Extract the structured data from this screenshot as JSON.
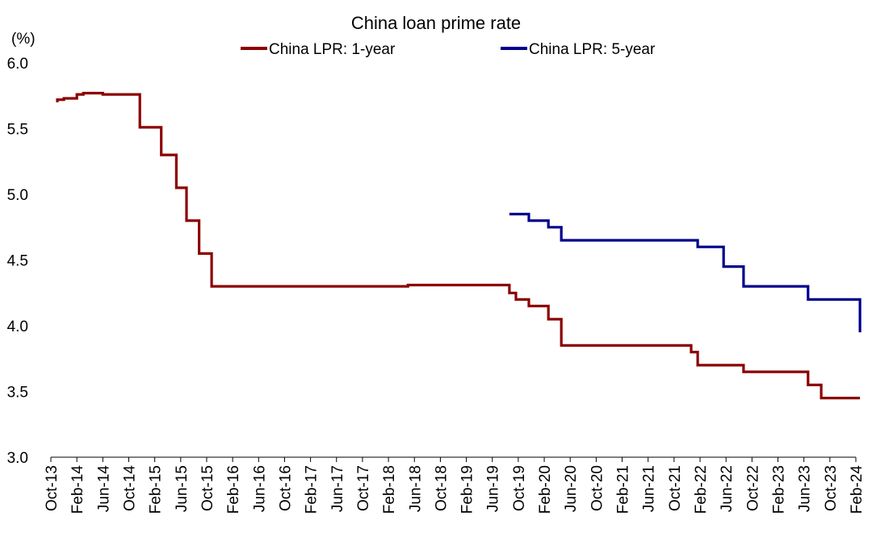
{
  "chart_data": {
    "type": "line",
    "title": "China loan prime rate",
    "ylabel": "(%)",
    "xlabel": "",
    "ylim": [
      3.0,
      6.0
    ],
    "yticks": [
      "3.0",
      "3.5",
      "4.0",
      "4.5",
      "5.0",
      "5.5",
      "6.0"
    ],
    "xlim": [
      "2013-10",
      "2024-02"
    ],
    "xticks": [
      "Oct-13",
      "Feb-14",
      "Jun-14",
      "Oct-14",
      "Feb-15",
      "Jun-15",
      "Oct-15",
      "Feb-16",
      "Jun-16",
      "Oct-16",
      "Feb-17",
      "Jun-17",
      "Oct-17",
      "Feb-18",
      "Jun-18",
      "Oct-18",
      "Feb-19",
      "Jun-19",
      "Oct-19",
      "Feb-20",
      "Jun-20",
      "Oct-20",
      "Feb-21",
      "Jun-21",
      "Oct-21",
      "Feb-22",
      "Jun-22",
      "Oct-22",
      "Feb-23",
      "Jun-23",
      "Oct-23",
      "Feb-24"
    ],
    "grid": false,
    "legend_position": "top",
    "series": [
      {
        "name": "China LPR: 1-year",
        "color": "#8B0000",
        "step": true,
        "points": [
          [
            "2013-10-25",
            5.71
          ],
          [
            "2013-11-01",
            5.72
          ],
          [
            "2013-12-01",
            5.73
          ],
          [
            "2014-02-01",
            5.76
          ],
          [
            "2014-03-01",
            5.77
          ],
          [
            "2014-05-01",
            5.77
          ],
          [
            "2014-06-01",
            5.76
          ],
          [
            "2014-11-18",
            5.76
          ],
          [
            "2014-11-22",
            5.51
          ],
          [
            "2015-02-28",
            5.51
          ],
          [
            "2015-03-01",
            5.3
          ],
          [
            "2015-05-10",
            5.3
          ],
          [
            "2015-05-11",
            5.05
          ],
          [
            "2015-06-27",
            5.05
          ],
          [
            "2015-06-28",
            4.8
          ],
          [
            "2015-08-25",
            4.8
          ],
          [
            "2015-08-26",
            4.55
          ],
          [
            "2015-10-23",
            4.55
          ],
          [
            "2015-10-24",
            4.3
          ],
          [
            "2018-04-30",
            4.3
          ],
          [
            "2018-05-01",
            4.31
          ],
          [
            "2019-08-19",
            4.31
          ],
          [
            "2019-08-20",
            4.25
          ],
          [
            "2019-09-20",
            4.2
          ],
          [
            "2019-11-20",
            4.15
          ],
          [
            "2020-02-20",
            4.05
          ],
          [
            "2020-04-20",
            3.85
          ],
          [
            "2021-12-20",
            3.8
          ],
          [
            "2022-01-20",
            3.7
          ],
          [
            "2022-08-22",
            3.65
          ],
          [
            "2023-06-20",
            3.55
          ],
          [
            "2023-08-21",
            3.45
          ],
          [
            "2024-02-20",
            3.45
          ]
        ]
      },
      {
        "name": "China LPR: 5-year",
        "color": "#00008B",
        "step": true,
        "points": [
          [
            "2019-08-20",
            4.85
          ],
          [
            "2019-11-20",
            4.8
          ],
          [
            "2020-02-20",
            4.75
          ],
          [
            "2020-04-20",
            4.65
          ],
          [
            "2022-01-20",
            4.6
          ],
          [
            "2022-05-20",
            4.45
          ],
          [
            "2022-08-22",
            4.3
          ],
          [
            "2023-06-20",
            4.2
          ],
          [
            "2024-02-20",
            3.95
          ]
        ]
      }
    ]
  }
}
